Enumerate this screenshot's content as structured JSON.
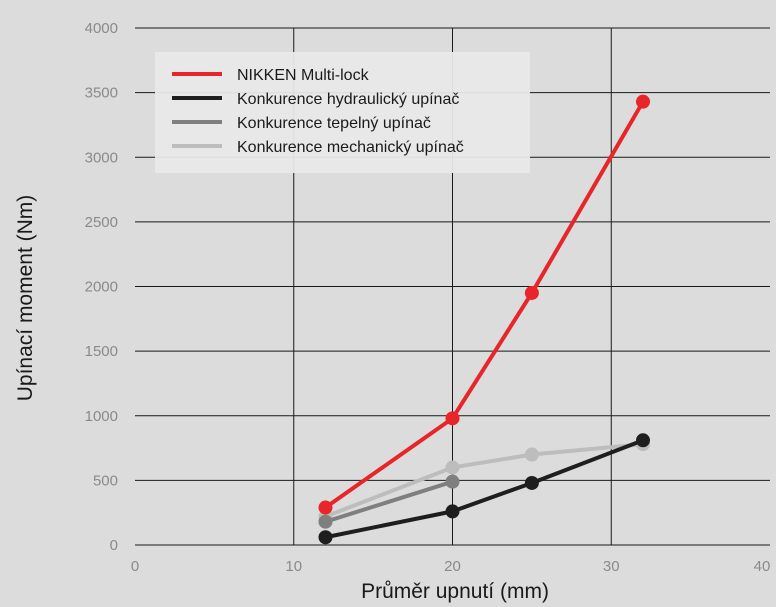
{
  "chart_data": {
    "type": "line",
    "xlabel": "Průměr upnutí (mm)",
    "ylabel": "Upínací moment (Nm)",
    "xlim": [
      0,
      40
    ],
    "ylim": [
      0,
      4000
    ],
    "x_ticks": [
      "0",
      "10",
      "20",
      "30",
      "40"
    ],
    "y_ticks": [
      "0",
      "500",
      "1000",
      "1500",
      "2000",
      "2500",
      "3000",
      "3500",
      "4000"
    ],
    "grid": "major gridlines on",
    "legend_position": "top-left",
    "series": [
      {
        "name": "NIKKEN Multi-lock",
        "color": "#e8262a",
        "points": [
          [
            12,
            290
          ],
          [
            20,
            980
          ],
          [
            25,
            1950
          ],
          [
            32,
            3430
          ]
        ]
      },
      {
        "name": "Konkurence hydraulický upínač",
        "color": "#1e1e1e",
        "points": [
          [
            12,
            60
          ],
          [
            20,
            260
          ],
          [
            25,
            480
          ],
          [
            32,
            810
          ]
        ]
      },
      {
        "name": "Konkurence tepelný upínač",
        "color": "#7f7f7f",
        "points": [
          [
            12,
            180
          ],
          [
            20,
            490
          ]
        ]
      },
      {
        "name": "Konkurence mechanický upínač",
        "color": "#bdbdbd",
        "points": [
          [
            12,
            220
          ],
          [
            20,
            600
          ],
          [
            25,
            700
          ],
          [
            32,
            780
          ]
        ]
      }
    ]
  }
}
